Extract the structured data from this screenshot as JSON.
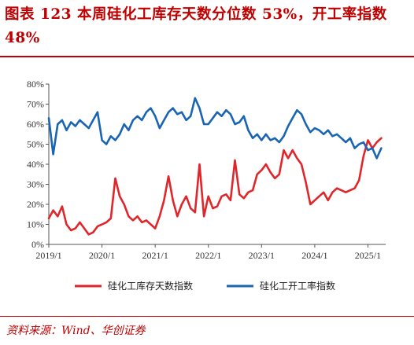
{
  "header": {
    "title": "图表 123   本周硅化工库存天数分位数 53%，开工率指数 48%"
  },
  "footer": {
    "source": "资料来源：Wind、华创证券"
  },
  "colors": {
    "accent": "#c00000",
    "series_red": "#e0262a",
    "series_blue": "#1a64b4"
  },
  "chart_data": {
    "type": "line",
    "x_type": "date",
    "xlim": [
      "2019-01",
      "2025-05"
    ],
    "ylim": [
      0,
      80
    ],
    "ylabel": "",
    "xlabel": "",
    "grid": false,
    "legend_position": "bottom",
    "yticks": [
      0,
      10,
      20,
      30,
      40,
      50,
      60,
      70,
      80
    ],
    "ytick_labels": [
      "0%",
      "10%",
      "20%",
      "30%",
      "40%",
      "50%",
      "60%",
      "70%",
      "80%"
    ],
    "xticks": [
      "2019-01",
      "2020-01",
      "2021-01",
      "2022-01",
      "2023-01",
      "2024-01",
      "2025-01"
    ],
    "xtick_labels": [
      "2019/1",
      "2020/1",
      "2021/1",
      "2022/1",
      "2023/1",
      "2024/1",
      "2025/1"
    ],
    "series": [
      {
        "name": "硅化工库存天数指数",
        "color": "#e0262a",
        "points": [
          [
            "2019-01",
            13
          ],
          [
            "2019-02",
            17
          ],
          [
            "2019-03",
            14
          ],
          [
            "2019-04",
            19
          ],
          [
            "2019-05",
            10
          ],
          [
            "2019-06",
            7
          ],
          [
            "2019-07",
            8
          ],
          [
            "2019-08",
            11
          ],
          [
            "2019-09",
            8
          ],
          [
            "2019-10",
            5
          ],
          [
            "2019-11",
            6
          ],
          [
            "2019-12",
            9
          ],
          [
            "2020-01",
            10
          ],
          [
            "2020-02",
            11
          ],
          [
            "2020-03",
            13
          ],
          [
            "2020-04",
            33
          ],
          [
            "2020-05",
            24
          ],
          [
            "2020-06",
            20
          ],
          [
            "2020-07",
            14
          ],
          [
            "2020-08",
            12
          ],
          [
            "2020-09",
            14
          ],
          [
            "2020-10",
            11
          ],
          [
            "2020-11",
            12
          ],
          [
            "2020-12",
            10
          ],
          [
            "2021-01",
            8
          ],
          [
            "2021-02",
            14
          ],
          [
            "2021-03",
            22
          ],
          [
            "2021-04",
            34
          ],
          [
            "2021-05",
            22
          ],
          [
            "2021-06",
            14
          ],
          [
            "2021-07",
            20
          ],
          [
            "2021-08",
            24
          ],
          [
            "2021-09",
            18
          ],
          [
            "2021-10",
            16
          ],
          [
            "2021-11",
            40
          ],
          [
            "2021-12",
            14
          ],
          [
            "2022-01",
            24
          ],
          [
            "2022-02",
            18
          ],
          [
            "2022-03",
            19
          ],
          [
            "2022-04",
            24
          ],
          [
            "2022-05",
            25
          ],
          [
            "2022-06",
            22
          ],
          [
            "2022-07",
            42
          ],
          [
            "2022-08",
            25
          ],
          [
            "2022-09",
            23
          ],
          [
            "2022-10",
            26
          ],
          [
            "2022-11",
            27
          ],
          [
            "2022-12",
            35
          ],
          [
            "2023-01",
            37
          ],
          [
            "2023-02",
            40
          ],
          [
            "2023-03",
            36
          ],
          [
            "2023-04",
            33
          ],
          [
            "2023-05",
            35
          ],
          [
            "2023-06",
            47
          ],
          [
            "2023-07",
            43
          ],
          [
            "2023-08",
            47
          ],
          [
            "2023-09",
            43
          ],
          [
            "2023-10",
            40
          ],
          [
            "2023-11",
            31
          ],
          [
            "2023-12",
            20
          ],
          [
            "2024-01",
            22
          ],
          [
            "2024-02",
            24
          ],
          [
            "2024-03",
            26
          ],
          [
            "2024-04",
            22
          ],
          [
            "2024-05",
            26
          ],
          [
            "2024-06",
            28
          ],
          [
            "2024-07",
            27
          ],
          [
            "2024-08",
            26
          ],
          [
            "2024-09",
            27
          ],
          [
            "2024-10",
            28
          ],
          [
            "2024-11",
            32
          ],
          [
            "2024-12",
            44
          ],
          [
            "2025-01",
            52
          ],
          [
            "2025-02",
            48
          ],
          [
            "2025-03",
            51
          ],
          [
            "2025-04",
            53
          ]
        ]
      },
      {
        "name": "硅化工开工率指数",
        "color": "#1a64b4",
        "points": [
          [
            "2019-01",
            63
          ],
          [
            "2019-02",
            45
          ],
          [
            "2019-03",
            60
          ],
          [
            "2019-04",
            62
          ],
          [
            "2019-05",
            57
          ],
          [
            "2019-06",
            61
          ],
          [
            "2019-07",
            59
          ],
          [
            "2019-08",
            62
          ],
          [
            "2019-09",
            60
          ],
          [
            "2019-10",
            58
          ],
          [
            "2019-11",
            62
          ],
          [
            "2019-12",
            66
          ],
          [
            "2020-01",
            52
          ],
          [
            "2020-02",
            50
          ],
          [
            "2020-03",
            54
          ],
          [
            "2020-04",
            52
          ],
          [
            "2020-05",
            55
          ],
          [
            "2020-06",
            60
          ],
          [
            "2020-07",
            57
          ],
          [
            "2020-08",
            62
          ],
          [
            "2020-09",
            64
          ],
          [
            "2020-10",
            62
          ],
          [
            "2020-11",
            66
          ],
          [
            "2020-12",
            68
          ],
          [
            "2021-01",
            64
          ],
          [
            "2021-02",
            58
          ],
          [
            "2021-03",
            62
          ],
          [
            "2021-04",
            66
          ],
          [
            "2021-05",
            68
          ],
          [
            "2021-06",
            65
          ],
          [
            "2021-07",
            66
          ],
          [
            "2021-08",
            62
          ],
          [
            "2021-09",
            64
          ],
          [
            "2021-10",
            73
          ],
          [
            "2021-11",
            68
          ],
          [
            "2021-12",
            60
          ],
          [
            "2022-01",
            60
          ],
          [
            "2022-02",
            63
          ],
          [
            "2022-03",
            66
          ],
          [
            "2022-04",
            64
          ],
          [
            "2022-05",
            67
          ],
          [
            "2022-06",
            65
          ],
          [
            "2022-07",
            60
          ],
          [
            "2022-08",
            61
          ],
          [
            "2022-09",
            64
          ],
          [
            "2022-10",
            57
          ],
          [
            "2022-11",
            53
          ],
          [
            "2022-12",
            55
          ],
          [
            "2023-01",
            52
          ],
          [
            "2023-02",
            55
          ],
          [
            "2023-03",
            52
          ],
          [
            "2023-04",
            53
          ],
          [
            "2023-05",
            51
          ],
          [
            "2023-06",
            54
          ],
          [
            "2023-07",
            59
          ],
          [
            "2023-08",
            63
          ],
          [
            "2023-09",
            67
          ],
          [
            "2023-10",
            65
          ],
          [
            "2023-11",
            60
          ],
          [
            "2023-12",
            56
          ],
          [
            "2024-01",
            58
          ],
          [
            "2024-02",
            57
          ],
          [
            "2024-03",
            55
          ],
          [
            "2024-04",
            57
          ],
          [
            "2024-05",
            54
          ],
          [
            "2024-06",
            55
          ],
          [
            "2024-07",
            53
          ],
          [
            "2024-08",
            51
          ],
          [
            "2024-09",
            53
          ],
          [
            "2024-10",
            48
          ],
          [
            "2024-11",
            50
          ],
          [
            "2024-12",
            51
          ],
          [
            "2025-01",
            47
          ],
          [
            "2025-02",
            48
          ],
          [
            "2025-03",
            43
          ],
          [
            "2025-04",
            48
          ]
        ]
      }
    ]
  }
}
